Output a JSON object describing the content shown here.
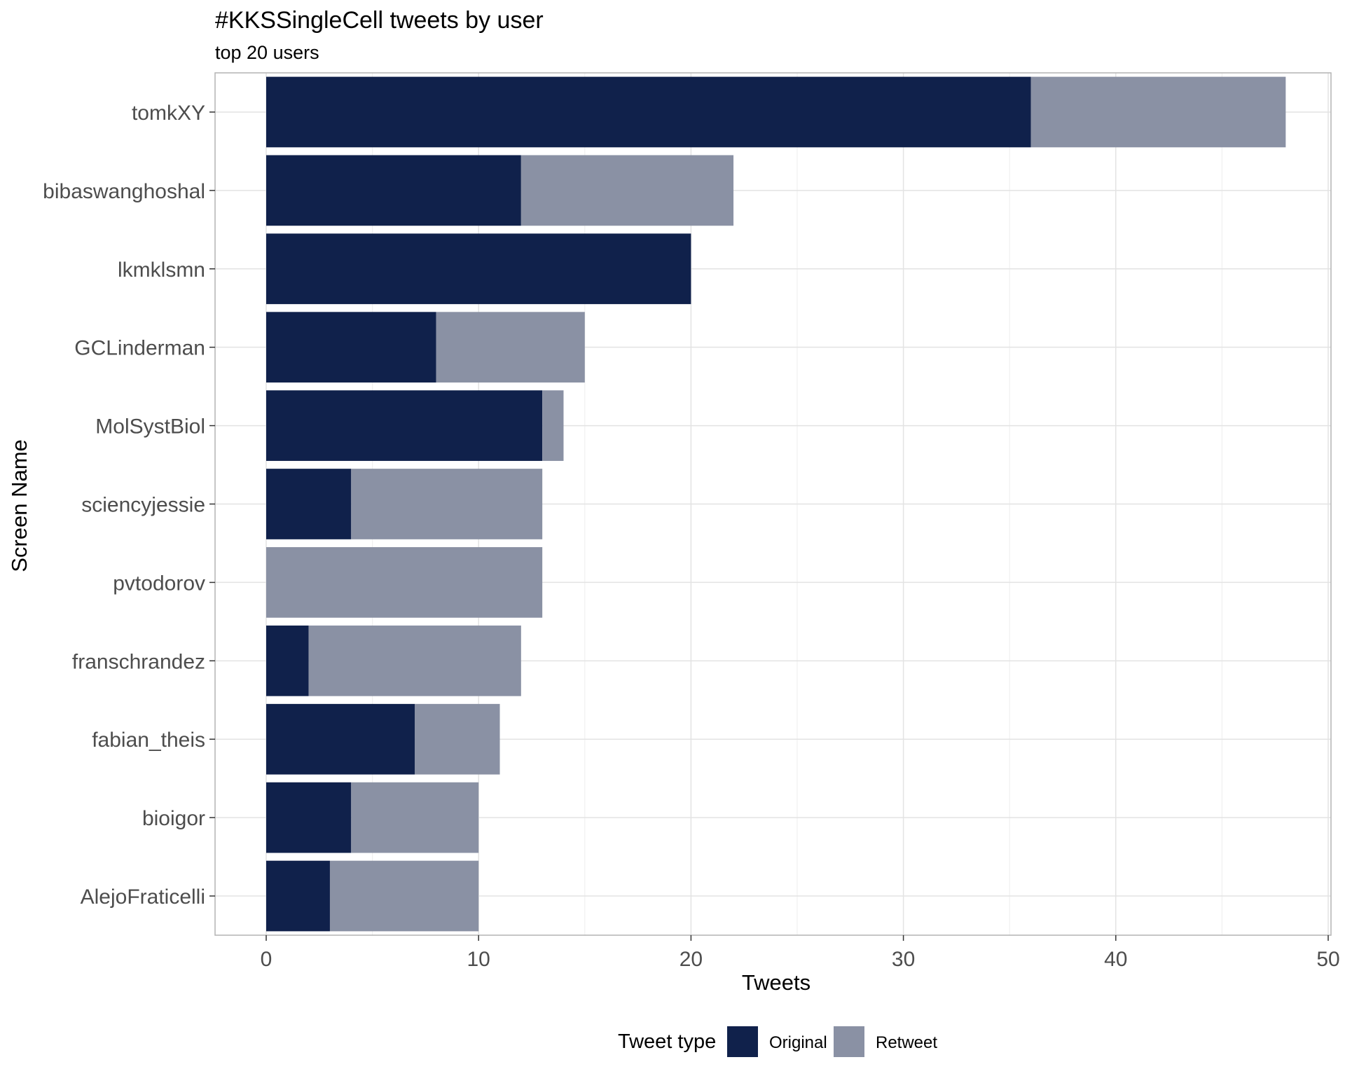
{
  "chart_data": {
    "type": "bar",
    "orientation": "horizontal",
    "stacked": true,
    "title": "#KKSSingleCell tweets by user",
    "subtitle": "top 20 users",
    "xlabel": "Tweets",
    "ylabel": "Screen Name",
    "xlim": [
      -2.4,
      50.2
    ],
    "xticks": [
      0,
      10,
      20,
      30,
      40,
      50
    ],
    "grid": true,
    "legend_position": "bottom",
    "legend_title": "Tweet type",
    "categories": [
      "tomkXY",
      "bibaswanghoshal",
      "lkmklsmn",
      "GCLinderman",
      "MolSystBiol",
      "sciencyjessie",
      "pvtodorov",
      "franschrandez",
      "fabian_theis",
      "bioigor",
      "AlejoFraticelli"
    ],
    "series": [
      {
        "name": "Original",
        "color": "#10214b",
        "values": [
          36,
          12,
          20,
          8,
          13,
          4,
          0,
          2,
          7,
          4,
          3
        ]
      },
      {
        "name": "Retweet",
        "color": "#8a91a4",
        "values": [
          12,
          10,
          0,
          7,
          1,
          9,
          13,
          10,
          4,
          6,
          7
        ]
      }
    ]
  }
}
